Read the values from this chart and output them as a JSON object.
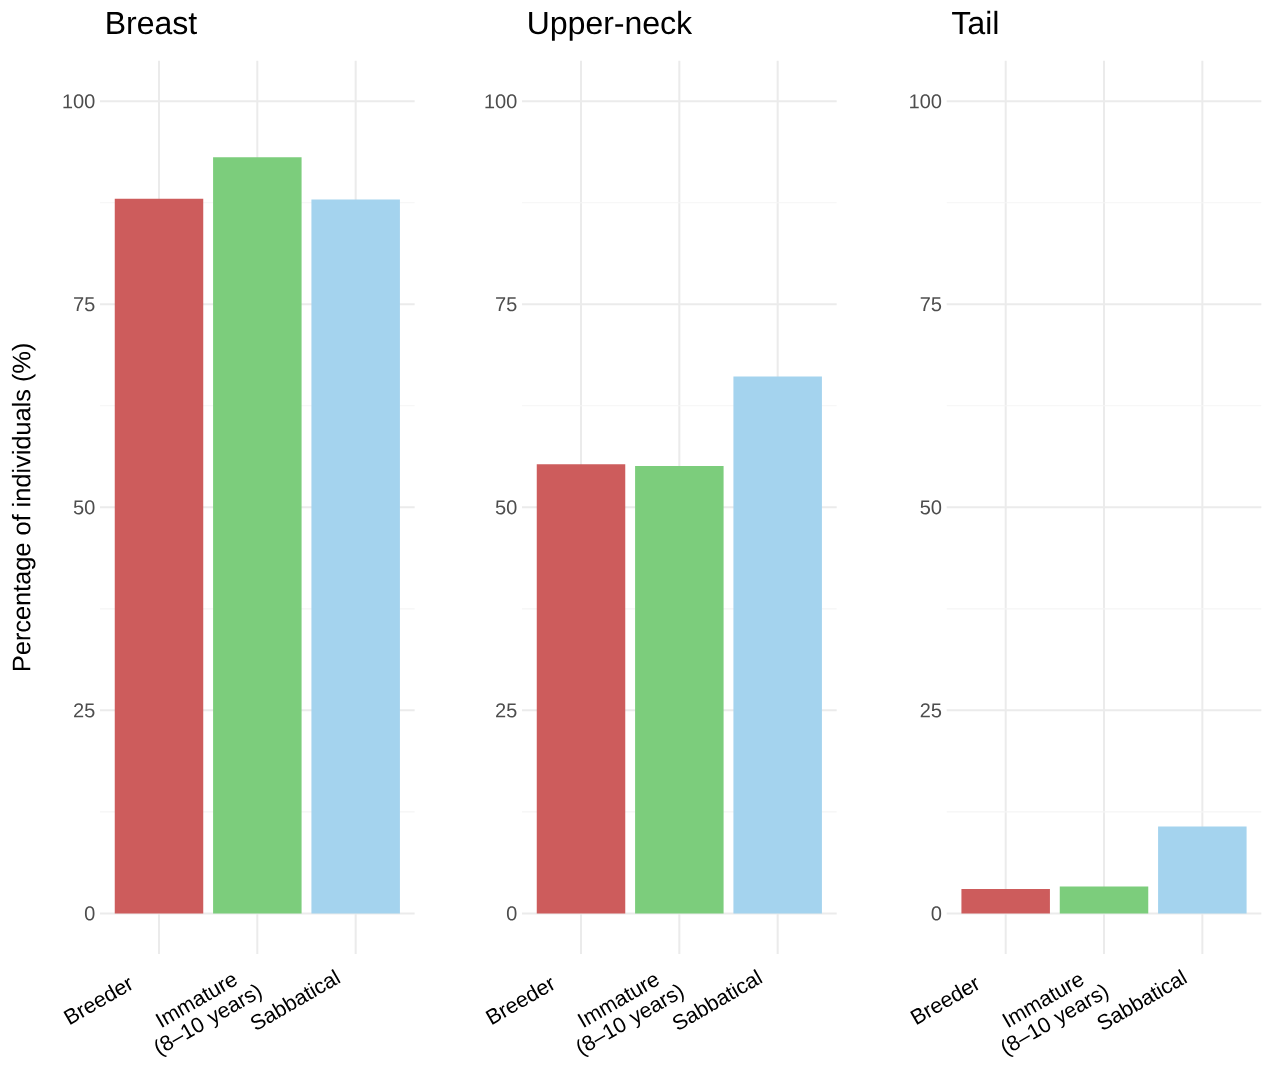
{
  "chart_data": [
    {
      "type": "bar",
      "title": "Breast",
      "ylabel": "Percentage of individuals (%)",
      "categories": [
        "Breeder",
        "Immature (8–10 years)",
        "Sabbatical"
      ],
      "values": [
        88,
        93.1,
        87.9
      ],
      "colors": [
        "#cd5c5c",
        "#7ccd7c",
        "#a4d3ee"
      ],
      "ylim": [
        -5,
        105
      ],
      "yticks": [
        0,
        {
          "value": 12.5,
          "label": null
        },
        25,
        {
          "value": 37.5,
          "label": null
        },
        50,
        {
          "value": 62.5,
          "label": null
        },
        75,
        {
          "value": 87.5,
          "label": null
        },
        100
      ],
      "grid": true
    },
    {
      "type": "bar",
      "title": "Upper-neck",
      "categories": [
        "Breeder",
        "Immature (8–10 years)",
        "Sabbatical"
      ],
      "values": [
        55.3,
        55.1,
        66.1
      ],
      "colors": [
        "#cd5c5c",
        "#7ccd7c",
        "#a4d3ee"
      ],
      "ylim": [
        -5,
        105
      ],
      "yticks": [
        0,
        {
          "value": 12.5,
          "label": null
        },
        25,
        {
          "value": 37.5,
          "label": null
        },
        50,
        {
          "value": 62.5,
          "label": null
        },
        75,
        {
          "value": 87.5,
          "label": null
        },
        100
      ],
      "grid": true
    },
    {
      "type": "bar",
      "title": "Tail",
      "categories": [
        "Breeder",
        "Immature (8–10 years)",
        "Sabbatical"
      ],
      "values": [
        3,
        3.3,
        10.7
      ],
      "colors": [
        "#cd5c5c",
        "#7ccd7c",
        "#a4d3ee"
      ],
      "ylim": [
        -5,
        105
      ],
      "yticks": [
        0,
        {
          "value": 12.5,
          "label": null
        },
        25,
        {
          "value": 37.5,
          "label": null
        },
        50,
        {
          "value": 62.5,
          "label": null
        },
        75,
        {
          "value": 87.5,
          "label": null
        },
        100
      ],
      "grid": true
    }
  ]
}
